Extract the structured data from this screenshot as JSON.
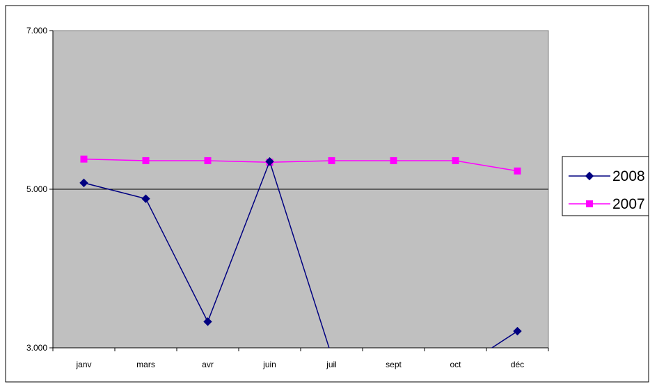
{
  "chart_data": {
    "type": "line",
    "categories": [
      "janv",
      "mars",
      "avr",
      "juin",
      "juil",
      "sept",
      "oct",
      "déc"
    ],
    "ylim": [
      3000,
      7000
    ],
    "yticks": [
      3000,
      5000,
      7000
    ],
    "ytick_labels": [
      "3.000",
      "5.000",
      "7.000"
    ],
    "grid": "horizontal major line at 5.000",
    "plot_background": "#c0c0c0",
    "legend_position": "right",
    "series": [
      {
        "name": "2008",
        "color": "#000080",
        "marker": "diamond",
        "values": [
          5080,
          4880,
          3330,
          5350,
          2900,
          null,
          2700,
          3210
        ]
      },
      {
        "name": "2007",
        "color": "#ff00ff",
        "marker": "square",
        "values": [
          5380,
          5360,
          5360,
          5340,
          5360,
          5360,
          5360,
          5230
        ]
      }
    ]
  }
}
